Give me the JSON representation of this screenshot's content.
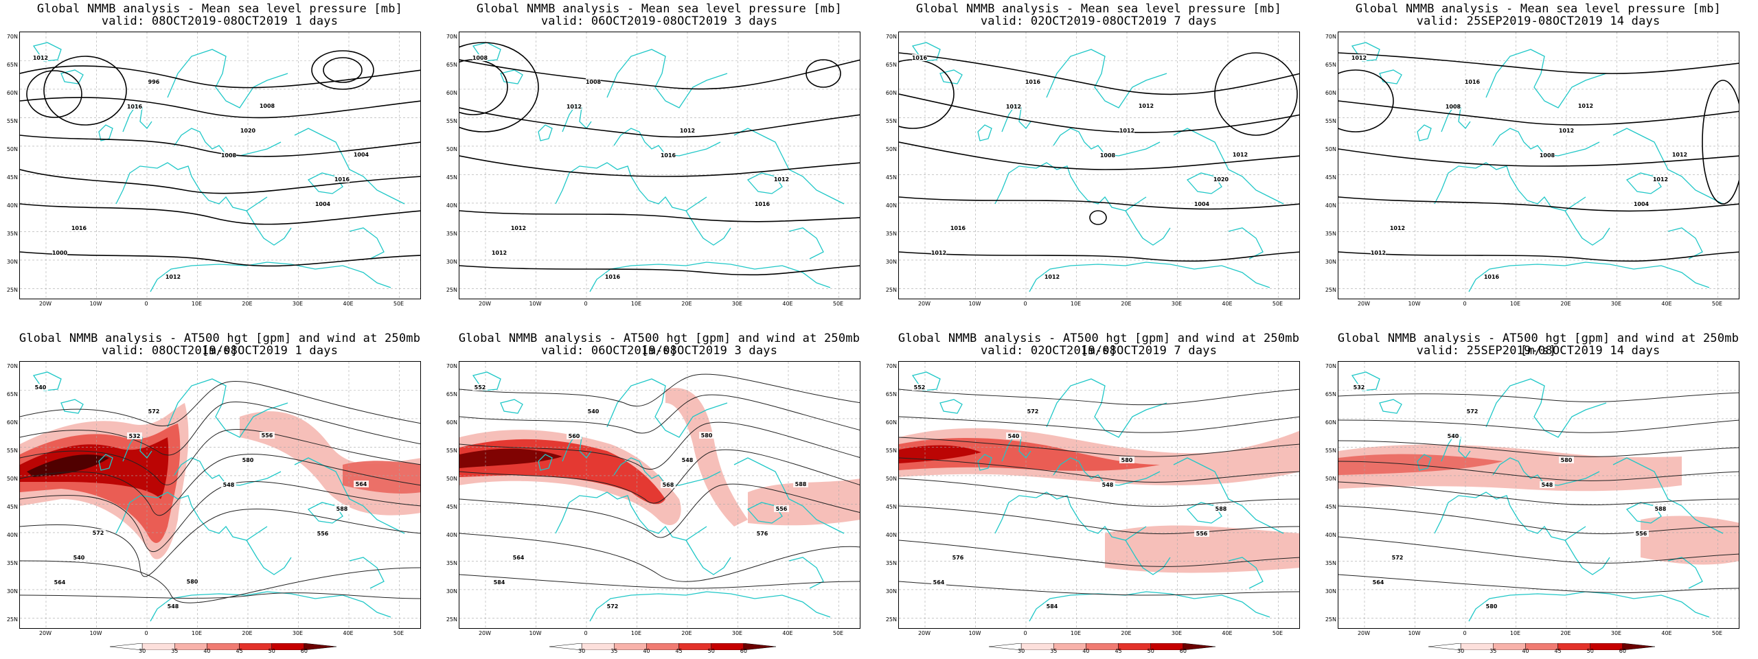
{
  "panels": [
    {
      "row": 0,
      "col": 0,
      "title1": "Global NMMB analysis - Mean sea level pressure [mb]",
      "title2": "valid: 08OCT2019-08OCT2019   1 days"
    },
    {
      "row": 0,
      "col": 1,
      "title1": "Global NMMB analysis - Mean sea level pressure [mb]",
      "title2": "valid: 06OCT2019-08OCT2019   3 days"
    },
    {
      "row": 0,
      "col": 2,
      "title1": "Global NMMB analysis - Mean sea level pressure [mb]",
      "title2": "valid: 02OCT2019-08OCT2019   7 days"
    },
    {
      "row": 0,
      "col": 3,
      "title1": "Global NMMB analysis - Mean sea level pressure [mb]",
      "title2": "valid: 25SEP2019-08OCT2019   14 days"
    },
    {
      "row": 1,
      "col": 0,
      "title1": "Global NMMB analysis - AT500 hgt [gpm] and wind at 250mb [m/s]",
      "title2": "valid: 08OCT2019-08OCT2019   1 days"
    },
    {
      "row": 1,
      "col": 1,
      "title1": "Global NMMB analysis - AT500 hgt [gpm] and wind at 250mb [m/s]",
      "title2": "valid: 06OCT2019-08OCT2019   3 days"
    },
    {
      "row": 1,
      "col": 2,
      "title1": "Global NMMB analysis - AT500 hgt [gpm] and wind at 250mb [m/s]",
      "title2": "valid: 02OCT2019-08OCT2019   7 days"
    },
    {
      "row": 1,
      "col": 3,
      "title1": "Global NMMB analysis - AT500 hgt [gpm] and wind at 250mb [m/s]",
      "title2": "valid: 25SEP2019-08OCT2019   14 days"
    }
  ],
  "axes": {
    "lat_labels": [
      "70N",
      "65N",
      "60N",
      "55N",
      "50N",
      "45N",
      "40N",
      "35N",
      "30N",
      "25N"
    ],
    "lon_labels": [
      "20W",
      "10W",
      "0",
      "10E",
      "20E",
      "30E",
      "40E",
      "50E"
    ]
  },
  "colorbar": {
    "ticks": [
      "30",
      "35",
      "40",
      "45",
      "50",
      "60"
    ],
    "colors": [
      "#ffffff",
      "#fde0dc",
      "#f8b2aa",
      "#f07b72",
      "#e3322a",
      "#c50000",
      "#6b0000"
    ]
  },
  "mslp_labels": [
    [
      "1012",
      "1016",
      "1008",
      "1004",
      "1000",
      "996",
      "1020",
      "1016",
      "1016",
      "1012",
      "1008",
      "1004"
    ],
    [
      "1008",
      "1012",
      "1016",
      "1016",
      "1012",
      "1008",
      "1012",
      "1012",
      "1012",
      "1016"
    ],
    [
      "1016",
      "1012",
      "1008",
      "1004",
      "1012",
      "1016",
      "1012",
      "1020",
      "1016",
      "1012",
      "1012",
      "1012"
    ],
    [
      "1012",
      "1008",
      "1008",
      "1004",
      "1012",
      "1016",
      "1012",
      "1012",
      "1012",
      "1016",
      "1012",
      "1012"
    ]
  ],
  "z500_labels": [
    [
      "540",
      "532",
      "548",
      "556",
      "564",
      "572",
      "580",
      "588",
      "540",
      "548",
      "556",
      "564",
      "572",
      "580"
    ],
    [
      "552",
      "560",
      "568",
      "576",
      "584",
      "540",
      "548",
      "556",
      "564",
      "572",
      "580",
      "588"
    ],
    [
      "552",
      "540",
      "548",
      "556",
      "564",
      "572",
      "580",
      "588",
      "576",
      "584"
    ],
    [
      "532",
      "540",
      "548",
      "556",
      "564",
      "572",
      "580",
      "588",
      "572",
      "580"
    ]
  ]
}
